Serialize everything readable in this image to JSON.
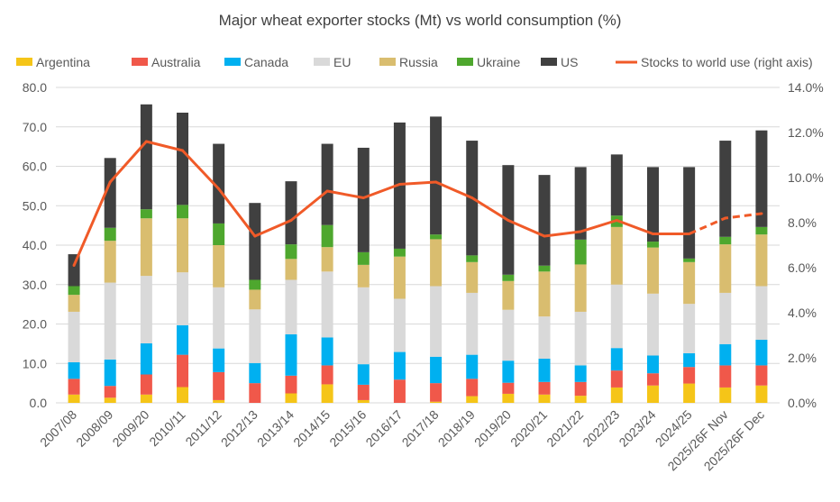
{
  "chart_data": {
    "type": "bar",
    "stacked": true,
    "title": "Major wheat exporter stocks (Mt) vs world consumption (%)",
    "xlabel": "",
    "ylabel": "",
    "y2label": "",
    "ylim": [
      0,
      80
    ],
    "y_ticks": [
      "0.0",
      "10.0",
      "20.0",
      "30.0",
      "40.0",
      "50.0",
      "60.0",
      "70.0",
      "80.0"
    ],
    "y2lim": [
      0,
      14
    ],
    "y2_ticks": [
      "0.0%",
      "2.0%",
      "4.0%",
      "6.0%",
      "8.0%",
      "10.0%",
      "12.0%",
      "14.0%"
    ],
    "grid": true,
    "legend_position": "top",
    "categories": [
      "2007/08",
      "2008/09",
      "2009/20",
      "2010/11",
      "2011/12",
      "2012/13",
      "2013/14",
      "2014/15",
      "2015/16",
      "2016/17",
      "2017/18",
      "2018/19",
      "2019/20",
      "2020/21",
      "2021/22",
      "2022/23",
      "2023/24",
      "2024/25",
      "2025/26F Nov",
      "2025/26F Dec"
    ],
    "series": [
      {
        "name": "Argentina",
        "color": "#f5c518",
        "values": [
          2.1,
          1.3,
          2.1,
          4.0,
          0.7,
          0.0,
          2.4,
          4.7,
          0.7,
          0.0,
          0.3,
          1.7,
          2.3,
          2.1,
          1.8,
          3.9,
          4.4,
          4.9,
          3.9,
          4.4
        ]
      },
      {
        "name": "Australia",
        "color": "#f0584a",
        "values": [
          4.0,
          3.0,
          5.1,
          8.2,
          7.1,
          5.0,
          4.5,
          4.8,
          3.9,
          5.9,
          4.7,
          4.4,
          2.8,
          3.2,
          3.5,
          4.3,
          3.1,
          4.2,
          5.6,
          5.1
        ]
      },
      {
        "name": "Canada",
        "color": "#00b0f0",
        "values": [
          4.2,
          6.7,
          7.9,
          7.5,
          6.0,
          5.1,
          10.5,
          7.1,
          5.2,
          7.0,
          6.7,
          6.1,
          5.6,
          5.9,
          4.2,
          5.7,
          4.5,
          3.5,
          5.4,
          6.5
        ]
      },
      {
        "name": "EU",
        "color": "#d9d9d9",
        "values": [
          12.8,
          19.5,
          17.1,
          13.4,
          15.5,
          13.6,
          13.8,
          16.7,
          19.5,
          13.5,
          17.9,
          15.7,
          12.9,
          10.7,
          13.6,
          16.1,
          15.7,
          12.5,
          13.0,
          13.6
        ]
      },
      {
        "name": "Russia",
        "color": "#d9bd6f",
        "values": [
          4.3,
          10.6,
          14.6,
          13.7,
          10.7,
          5.0,
          5.3,
          6.2,
          5.7,
          10.7,
          11.9,
          7.8,
          7.3,
          11.4,
          12.0,
          14.6,
          11.7,
          10.6,
          12.3,
          13.1
        ]
      },
      {
        "name": "Ukraine",
        "color": "#4ea72e",
        "values": [
          2.2,
          3.3,
          2.3,
          3.4,
          5.5,
          2.5,
          3.7,
          5.6,
          3.2,
          2.0,
          1.2,
          1.7,
          1.6,
          1.5,
          6.3,
          2.9,
          1.5,
          0.9,
          1.9,
          1.9
        ]
      },
      {
        "name": "US",
        "color": "#404040",
        "values": [
          8.1,
          17.7,
          26.6,
          23.4,
          20.2,
          19.5,
          16.0,
          20.6,
          26.5,
          32.0,
          29.9,
          29.1,
          27.8,
          23.0,
          18.4,
          15.5,
          18.9,
          23.2,
          24.4,
          24.5
        ]
      }
    ],
    "line": {
      "name": "Stocks to world use (right axis)",
      "color": "#f05a28",
      "axis": "right",
      "forecast_dashed_from": "2024/25",
      "values": [
        6.1,
        9.8,
        11.6,
        11.2,
        9.5,
        7.4,
        8.1,
        9.4,
        9.1,
        9.7,
        9.8,
        9.1,
        8.1,
        7.4,
        7.6,
        8.1,
        7.5,
        7.5,
        8.2,
        8.4
      ]
    }
  }
}
